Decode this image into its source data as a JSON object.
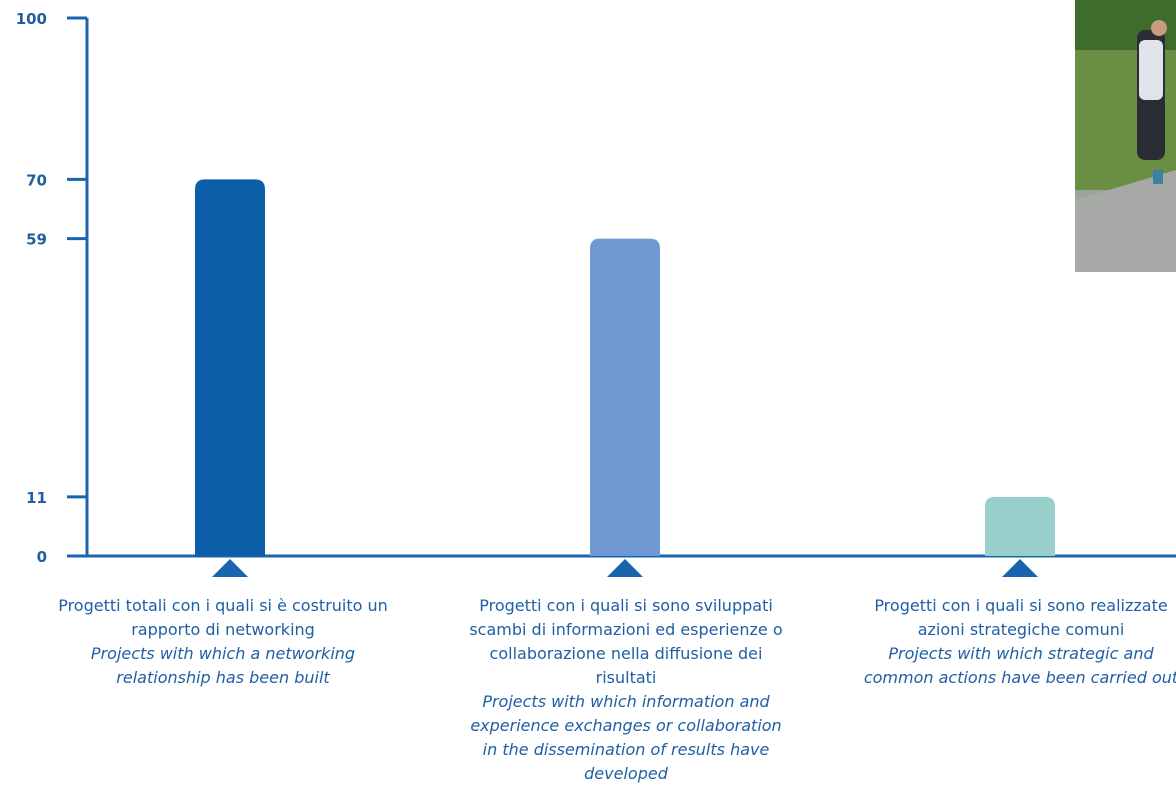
{
  "chart_data": {
    "type": "bar",
    "y_ticks": [
      "100",
      "70",
      "59",
      "11",
      "0"
    ],
    "ylim": [
      0,
      100
    ],
    "grid": false,
    "categories": [
      {
        "it_text": "Progetti totali con i quali si è costruito un rapporto di networking",
        "en_text": "Projects with which a networking relationship has been built"
      },
      {
        "it_text": "Progetti con i quali si sono sviluppati scambi di informazioni ed esperienze o collaborazione nella diffusione dei risultati",
        "en_text": "Projects with which information and experience exchanges or collaboration in the dissemination of results have developed"
      },
      {
        "it_text": "Progetti con i quali si sono realizzate azioni strategiche comuni",
        "en_text": "Projects with which strategic and common actions have been carried out"
      }
    ],
    "values": [
      70,
      59,
      11
    ],
    "colors": [
      "#0d5ea8",
      "#6f99d3",
      "#98cfcb"
    ],
    "axis_color": "#1a64ad"
  },
  "photo": {
    "description_icon": "photo-people-on-road"
  }
}
